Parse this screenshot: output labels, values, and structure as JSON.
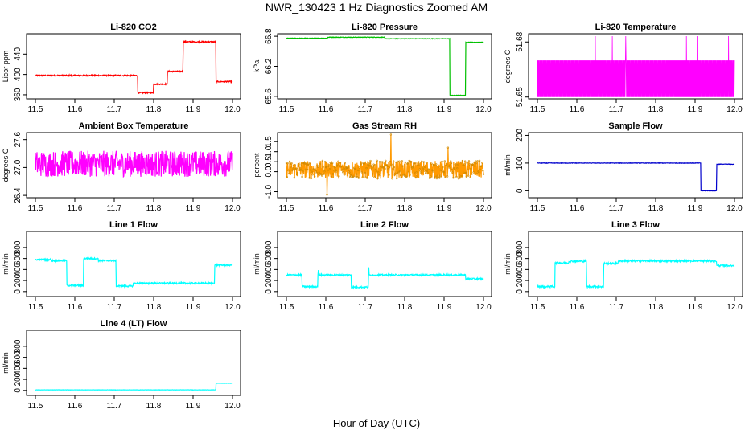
{
  "figure": {
    "title": "NWR_130423  1 Hz Diagnostics Zoomed AM",
    "xlabel": "Hour of Day (UTC)"
  },
  "chart_data": [
    {
      "id": "co2",
      "type": "line",
      "title": "Li-820 CO2",
      "ylabel": "Licor ppm",
      "color": "#ff0000",
      "xlim": [
        11.5,
        12.0
      ],
      "ylim": [
        352,
        480
      ],
      "xticks": [
        "11.5",
        "11.6",
        "11.7",
        "11.8",
        "11.9",
        "12.0"
      ],
      "yticks": [
        "360",
        "400",
        "440"
      ],
      "noise": 1.2,
      "markers": false,
      "segments": [
        [
          11.5,
          11.76,
          398
        ],
        [
          11.76,
          11.8,
          364
        ],
        [
          11.8,
          11.835,
          381
        ],
        [
          11.835,
          11.875,
          406
        ],
        [
          11.875,
          11.958,
          464
        ],
        [
          11.958,
          12.0,
          386
        ]
      ],
      "spikes": []
    },
    {
      "id": "pressure",
      "type": "line",
      "title": "Li-820 Pressure",
      "ylabel": "kPa",
      "color": "#00c000",
      "xlim": [
        11.5,
        12.0
      ],
      "ylim": [
        65.55,
        66.85
      ],
      "xticks": [
        "11.5",
        "11.6",
        "11.7",
        "11.8",
        "11.9",
        "12.0"
      ],
      "yticks": [
        "65.6",
        "66.2",
        "66.8"
      ],
      "noise": 0.005,
      "markers": false,
      "segments": [
        [
          11.5,
          11.605,
          66.76
        ],
        [
          11.605,
          11.75,
          66.78
        ],
        [
          11.75,
          11.915,
          66.75
        ],
        [
          11.915,
          11.955,
          65.62
        ],
        [
          11.955,
          12.0,
          66.68
        ]
      ],
      "spikes": []
    },
    {
      "id": "temperature",
      "type": "line",
      "title": "Li-820 Temperature",
      "ylabel": "degrees C",
      "color": "#ff00ff",
      "xlim": [
        11.5,
        12.0
      ],
      "ylim": [
        51.649,
        51.6845
      ],
      "xticks": [
        "11.5",
        "11.6",
        "11.7",
        "11.8",
        "11.9",
        "12.0"
      ],
      "yticks": [
        "51.65",
        "51.68"
      ],
      "mode": "toggle",
      "low": 51.65,
      "high": 51.67,
      "spikes": [
        [
          11.647,
          51.6832
        ],
        [
          11.69,
          51.6832
        ],
        [
          11.724,
          51.6832
        ],
        [
          11.878,
          51.6832
        ],
        [
          11.907,
          51.6832
        ],
        [
          11.985,
          51.6832
        ]
      ]
    },
    {
      "id": "ambient",
      "type": "line",
      "title": "Ambient Box Temperature",
      "ylabel": "degrees C",
      "color": "#ff00ff",
      "xlim": [
        11.5,
        12.0
      ],
      "ylim": [
        26.35,
        27.75
      ],
      "xticks": [
        "11.5",
        "11.6",
        "11.7",
        "11.8",
        "11.9",
        "12.0"
      ],
      "yticks": [
        "26.4",
        "27.0",
        "27.6"
      ],
      "mode": "noise",
      "center": 27.08,
      "amplitude": 0.28,
      "spikes": []
    },
    {
      "id": "rh",
      "type": "line",
      "title": "Gas Stream RH",
      "ylabel": "percent",
      "color": "#ff9900",
      "xlim": [
        11.5,
        12.0
      ],
      "ylim": [
        -1.3,
        1.95
      ],
      "xticks": [
        "11.5",
        "11.6",
        "11.7",
        "11.8",
        "11.9",
        "12.0"
      ],
      "yticks": [
        "-1.0",
        "0.0",
        "0.5",
        "1.0",
        "1.5"
      ],
      "mode": "noise",
      "center": 0.1,
      "amplitude": 0.45,
      "markers": true,
      "spikes": [
        [
          11.765,
          1.85
        ],
        [
          11.603,
          -1.15
        ],
        [
          11.91,
          1.2
        ]
      ]
    },
    {
      "id": "sample_flow",
      "type": "line",
      "title": "Sample Flow",
      "ylabel": "ml/min",
      "color": "#0000cc",
      "xlim": [
        11.5,
        12.0
      ],
      "ylim": [
        -25,
        210
      ],
      "xticks": [
        "11.5",
        "11.6",
        "11.7",
        "11.8",
        "11.9",
        "12.0"
      ],
      "yticks": [
        "0",
        "100",
        "200"
      ],
      "noise": 0.8,
      "markers": false,
      "segments": [
        [
          11.5,
          11.915,
          100
        ],
        [
          11.915,
          11.955,
          0
        ],
        [
          11.955,
          12.0,
          96
        ]
      ],
      "spikes": []
    },
    {
      "id": "line1",
      "type": "line",
      "title": "Line 1 Flow",
      "ylabel": "ml/min",
      "color": "#00ffff",
      "xlim": [
        11.5,
        12.0
      ],
      "ylim": [
        -90,
        1090
      ],
      "xticks": [
        "11.5",
        "11.6",
        "11.7",
        "11.8",
        "11.9",
        "12.0"
      ],
      "yticks": [
        "0",
        "200",
        "400",
        "600",
        "800"
      ],
      "noise": 14,
      "markers": false,
      "segments": [
        [
          11.5,
          11.54,
          580
        ],
        [
          11.54,
          11.58,
          560
        ],
        [
          11.58,
          11.622,
          110
        ],
        [
          11.622,
          11.66,
          600
        ],
        [
          11.66,
          11.705,
          560
        ],
        [
          11.705,
          11.748,
          100
        ],
        [
          11.748,
          11.955,
          150
        ],
        [
          11.955,
          12.0,
          480
        ]
      ],
      "spikes": []
    },
    {
      "id": "line2",
      "type": "line",
      "title": "Line 2 Flow",
      "ylabel": "ml/min",
      "color": "#00ffff",
      "xlim": [
        11.5,
        12.0
      ],
      "ylim": [
        -90,
        1090
      ],
      "xticks": [
        "11.5",
        "11.6",
        "11.7",
        "11.8",
        "11.9",
        "12.0"
      ],
      "yticks": [
        "0",
        "200",
        "400",
        "600",
        "800"
      ],
      "noise": 14,
      "markers": false,
      "segments": [
        [
          11.5,
          11.54,
          300
        ],
        [
          11.54,
          11.58,
          90
        ],
        [
          11.58,
          11.665,
          300
        ],
        [
          11.665,
          11.708,
          80
        ],
        [
          11.708,
          11.955,
          300
        ],
        [
          11.955,
          12.0,
          230
        ]
      ],
      "spikes": [
        [
          11.581,
          390
        ],
        [
          11.709,
          440
        ]
      ]
    },
    {
      "id": "line3",
      "type": "line",
      "title": "Line 3 Flow",
      "ylabel": "ml/min",
      "color": "#00ffff",
      "xlim": [
        11.5,
        12.0
      ],
      "ylim": [
        -90,
        1090
      ],
      "xticks": [
        "11.5",
        "11.6",
        "11.7",
        "11.8",
        "11.9",
        "12.0"
      ],
      "yticks": [
        "0",
        "200",
        "400",
        "600",
        "800"
      ],
      "noise": 16,
      "markers": false,
      "segments": [
        [
          11.5,
          11.545,
          90
        ],
        [
          11.545,
          11.58,
          520
        ],
        [
          11.58,
          11.625,
          550
        ],
        [
          11.625,
          11.668,
          90
        ],
        [
          11.668,
          11.705,
          510
        ],
        [
          11.705,
          11.955,
          555
        ],
        [
          11.955,
          12.0,
          470
        ]
      ],
      "spikes": []
    },
    {
      "id": "line4",
      "type": "line",
      "title": "Line 4 (LT) Flow",
      "ylabel": "ml/min",
      "color": "#00ffff",
      "xlim": [
        11.5,
        12.0
      ],
      "ylim": [
        -90,
        1090
      ],
      "xticks": [
        "11.5",
        "11.6",
        "11.7",
        "11.8",
        "11.9",
        "12.0"
      ],
      "yticks": [
        "0",
        "200",
        "400",
        "600",
        "800"
      ],
      "noise": 2,
      "markers": false,
      "segments": [
        [
          11.5,
          11.958,
          10
        ],
        [
          11.958,
          12.0,
          130
        ]
      ],
      "spikes": []
    }
  ]
}
